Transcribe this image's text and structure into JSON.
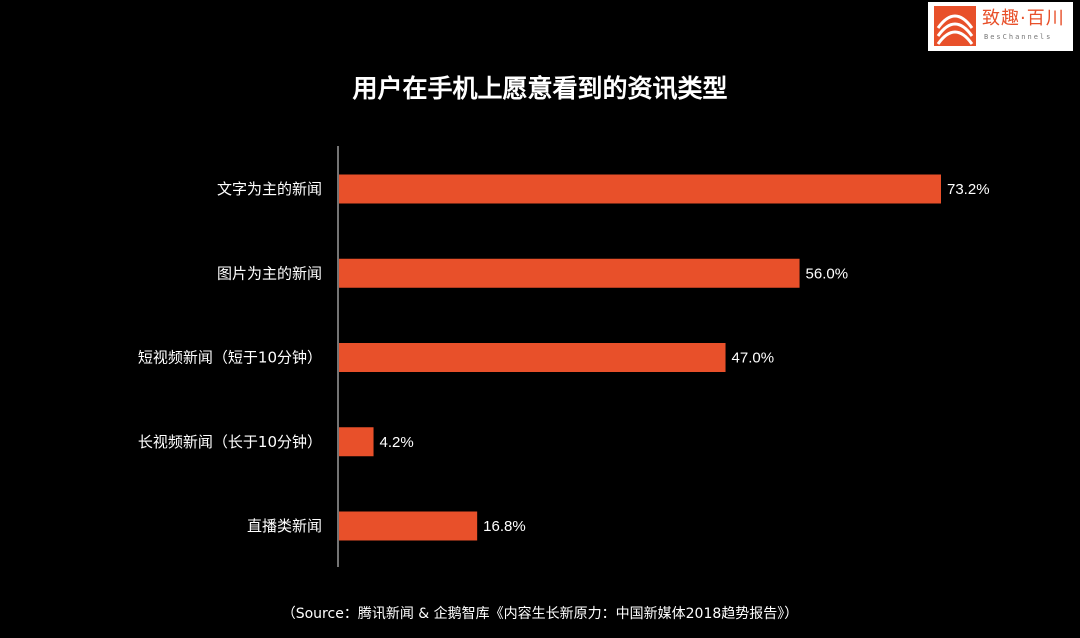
{
  "logo": {
    "name_cn": "致趣·百川",
    "name_en": "BesChannels",
    "brand_color": "#e8502a"
  },
  "title": "用户在手机上愿意看到的资讯类型",
  "source": "（Source：腾讯新闻 & 企鹅智库《内容生长新原力：中国新媒体2018趋势报告》）",
  "colors": {
    "background": "#000000",
    "bar": "#e8502a",
    "text": "#ffffff",
    "axis": "#9a9a9a"
  },
  "chart_data": {
    "type": "bar",
    "orientation": "horizontal",
    "title": "用户在手机上愿意看到的资讯类型",
    "categories": [
      "文字为主的新闻",
      "图片为主的新闻",
      "短视频新闻（短于10分钟）",
      "长视频新闻（长于10分钟）",
      "直播类新闻"
    ],
    "values": [
      73.2,
      56.0,
      47.0,
      4.2,
      16.8
    ],
    "value_labels": [
      "73.2%",
      "56.0%",
      "47.0%",
      "4.2%",
      "16.8%"
    ],
    "unit": "%",
    "xlim": [
      0,
      73.2
    ],
    "grid": false,
    "legend": false
  }
}
